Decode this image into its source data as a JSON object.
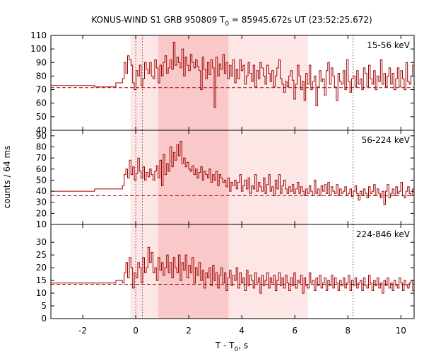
{
  "chart_data": {
    "type": "line",
    "title": "KONUS-WIND S1 GRB 950809 T",
    "title_sub": "0",
    "title_rest": " = 85945.672s UT (23:52:25.672)",
    "xlabel": "T - T",
    "xlabel_sub": "0",
    "xlabel_rest": ", s",
    "ylabel": "counts / 64 ms",
    "xlim": [
      -3.2,
      10.5
    ],
    "x_ticks": [
      "-2",
      "0",
      "2",
      "4",
      "6",
      "8",
      "10"
    ],
    "x_tick_values": [
      -2,
      0,
      2,
      4,
      6,
      8,
      10
    ],
    "line_color": "#a00000",
    "shade_light": "#fde6e6",
    "shade_dark": "#f9c9c9",
    "shaded_intervals": [
      {
        "from": -0.2,
        "to": 6.5,
        "level": "light"
      },
      {
        "from": 0.85,
        "to": 3.5,
        "level": "dark"
      }
    ],
    "dotted_lines_x": [
      0.0,
      0.25,
      8.2
    ],
    "panels": [
      {
        "band": "15-56 keV",
        "ylim": [
          40,
          110
        ],
        "y_ticks": [
          "40",
          "50",
          "60",
          "70",
          "80",
          "90",
          "100",
          "110"
        ],
        "y_tick_values": [
          40,
          50,
          60,
          70,
          80,
          90,
          100,
          110
        ],
        "background": 71.5,
        "pre": [
          [
            -3.2,
            73
          ],
          [
            -1.55,
            72
          ],
          [
            -0.75,
            75
          ]
        ],
        "start": -0.5,
        "values": [
          78,
          90,
          82,
          95,
          92,
          88,
          75,
          70,
          84,
          80,
          88,
          73,
          78,
          90,
          85,
          82,
          90,
          80,
          78,
          92,
          86,
          75,
          88,
          80,
          90,
          95,
          82,
          86,
          92,
          85,
          105,
          88,
          94,
          90,
          86,
          100,
          80,
          94,
          88,
          84,
          96,
          90,
          86,
          92,
          87,
          84,
          70,
          94,
          85,
          78,
          90,
          81,
          92,
          86,
          57,
          94,
          80,
          89,
          85,
          96,
          82,
          90,
          78,
          88,
          80,
          92,
          75,
          85,
          78,
          92,
          84,
          88,
          74,
          80,
          90,
          82,
          76,
          88,
          72,
          84,
          78,
          90,
          86,
          80,
          74,
          88,
          82,
          76,
          84,
          72,
          80,
          86,
          92,
          78,
          74,
          68,
          76,
          72,
          80,
          84,
          77,
          63,
          74,
          88,
          80,
          70,
          76,
          62,
          82,
          74,
          88,
          70,
          76,
          80,
          58,
          72,
          84,
          76,
          78,
          66,
          84,
          90,
          74,
          86,
          80,
          72,
          62,
          82,
          76,
          74,
          84,
          70,
          92,
          76,
          68,
          78,
          80,
          72,
          84,
          74,
          78,
          70,
          86,
          82,
          72,
          88,
          78,
          74,
          84,
          70,
          80,
          76,
          92,
          74,
          82,
          72,
          80,
          86,
          74,
          82,
          70,
          78,
          86,
          72,
          84,
          78,
          70,
          90,
          76,
          74,
          80,
          88,
          72,
          78,
          82,
          80
        ]
      },
      {
        "band": "56-224 keV",
        "ylim": [
          10,
          95
        ],
        "y_ticks": [
          "10",
          "20",
          "30",
          "40",
          "50",
          "60",
          "70",
          "80",
          "90"
        ],
        "y_tick_values": [
          10,
          20,
          30,
          40,
          50,
          60,
          70,
          80,
          90
        ],
        "background": 36,
        "pre": [
          [
            -3.2,
            40
          ],
          [
            -1.55,
            42
          ],
          [
            -0.75,
            42
          ]
        ],
        "start": -0.5,
        "values": [
          45,
          55,
          60,
          52,
          68,
          55,
          62,
          50,
          56,
          70,
          58,
          52,
          62,
          50,
          57,
          53,
          60,
          55,
          50,
          58,
          63,
          52,
          68,
          45,
          73,
          55,
          65,
          58,
          80,
          62,
          75,
          68,
          82,
          72,
          85,
          65,
          70,
          62,
          66,
          60,
          58,
          63,
          55,
          60,
          52,
          57,
          62,
          50,
          58,
          55,
          52,
          60,
          48,
          55,
          50,
          58,
          45,
          55,
          52,
          48,
          50,
          44,
          52,
          40,
          48,
          45,
          50,
          42,
          48,
          55,
          40,
          45,
          50,
          42,
          52,
          38,
          45,
          42,
          55,
          40,
          48,
          44,
          40,
          52,
          38,
          46,
          55,
          40,
          44,
          36,
          50,
          42,
          55,
          38,
          45,
          50,
          42,
          38,
          44,
          40,
          46,
          38,
          42,
          48,
          38,
          44,
          40,
          36,
          42,
          38,
          45,
          40,
          36,
          50,
          38,
          42,
          36,
          45,
          40,
          46,
          38,
          48,
          36,
          44,
          40,
          38,
          46,
          36,
          42,
          38,
          40,
          44,
          36,
          38,
          42,
          35,
          40,
          45,
          38,
          32,
          40,
          36,
          42,
          38,
          34,
          44,
          38,
          40,
          46,
          36,
          42,
          38,
          34,
          40,
          28,
          40,
          46,
          34,
          38,
          42,
          36,
          44,
          38,
          40,
          48,
          36,
          34,
          40,
          44,
          38,
          36,
          42,
          38,
          34,
          40,
          36
        ]
      },
      {
        "band": "224-846 keV",
        "ylim": [
          0,
          37
        ],
        "y_ticks": [
          "0",
          "5",
          "10",
          "15",
          "20",
          "25",
          "30"
        ],
        "y_tick_values": [
          0,
          5,
          10,
          15,
          20,
          25,
          30
        ],
        "background": 13.5,
        "pre": [
          [
            -3.2,
            14
          ],
          [
            -1.55,
            14
          ],
          [
            -0.75,
            15
          ]
        ],
        "start": -0.5,
        "values": [
          14,
          18,
          22,
          16,
          24,
          20,
          12,
          18,
          16,
          22,
          20,
          14,
          24,
          18,
          20,
          28,
          22,
          26,
          18,
          20,
          15,
          24,
          19,
          22,
          17,
          20,
          25,
          18,
          22,
          16,
          24,
          20,
          18,
          25,
          15,
          22,
          19,
          25,
          16,
          21,
          18,
          24,
          14,
          20,
          17,
          22,
          15,
          19,
          12,
          18,
          16,
          20,
          13,
          21,
          15,
          18,
          12,
          17,
          20,
          14,
          18,
          11,
          16,
          19,
          13,
          17,
          15,
          20,
          12,
          18,
          14,
          16,
          11,
          19,
          13,
          17,
          15,
          12,
          18,
          14,
          16,
          10,
          17,
          13,
          15,
          18,
          12,
          16,
          14,
          17,
          11,
          15,
          18,
          13,
          16,
          12,
          17,
          14,
          11,
          16,
          13,
          18,
          12,
          15,
          14,
          17,
          10,
          16,
          13,
          12,
          18,
          14,
          15,
          11,
          16,
          13,
          17,
          12,
          14,
          16,
          11,
          15,
          13,
          17,
          12,
          16,
          14,
          11,
          15,
          13,
          16,
          12,
          14,
          17,
          11,
          15,
          13,
          16,
          12,
          14,
          15,
          11,
          16,
          13,
          12,
          17,
          14,
          11,
          15,
          13,
          16,
          12,
          14,
          10,
          15,
          13,
          16,
          12,
          14,
          11,
          15,
          13,
          12,
          16,
          14,
          11,
          15,
          13,
          12,
          14,
          15,
          11,
          13,
          16,
          12,
          14
        ]
      }
    ]
  }
}
